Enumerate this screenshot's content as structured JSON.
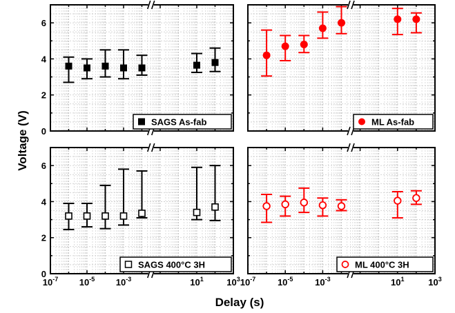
{
  "chart_data": {
    "type": "scatter",
    "xlabel": "Delay (s)",
    "ylabel": "Voltage (V)",
    "x_scale": "log",
    "xlim": [
      1e-07,
      1000
    ],
    "ylim": [
      0,
      7
    ],
    "x_tick_exponents": [
      "-7",
      "-5",
      "-3",
      "1",
      "3"
    ],
    "x_tick_base": "10",
    "y_ticks": [
      "0",
      "2",
      "4",
      "6"
    ],
    "grid": true,
    "axis_break_between": [
      0.01,
      0.1
    ],
    "panels": [
      {
        "position": "top-left",
        "legend": "SAGS As-fab",
        "marker": "filled-square",
        "color": "#000000",
        "points": [
          {
            "x": 1e-06,
            "y": 3.6,
            "low": 2.7,
            "high": 4.1
          },
          {
            "x": 1e-05,
            "y": 3.5,
            "low": 2.9,
            "high": 4.0
          },
          {
            "x": 0.0001,
            "y": 3.6,
            "low": 3.0,
            "high": 4.5
          },
          {
            "x": 0.001,
            "y": 3.5,
            "low": 2.9,
            "high": 4.5
          },
          {
            "x": 0.01,
            "y": 3.5,
            "low": 3.1,
            "high": 4.2
          },
          {
            "x": 10,
            "y": 3.65,
            "low": 3.25,
            "high": 4.3
          },
          {
            "x": 100,
            "y": 3.8,
            "low": 3.3,
            "high": 4.6
          }
        ]
      },
      {
        "position": "top-right",
        "legend": "ML As-fab",
        "marker": "filled-circle",
        "color": "#ff0000",
        "points": [
          {
            "x": 1e-06,
            "y": 4.2,
            "low": 3.05,
            "high": 5.6
          },
          {
            "x": 1e-05,
            "y": 4.7,
            "low": 3.9,
            "high": 5.3
          },
          {
            "x": 0.0001,
            "y": 4.8,
            "low": 4.35,
            "high": 5.3
          },
          {
            "x": 0.001,
            "y": 5.7,
            "low": 5.15,
            "high": 6.6
          },
          {
            "x": 0.01,
            "y": 6.0,
            "low": 5.4,
            "high": 6.9
          },
          {
            "x": 10,
            "y": 6.2,
            "low": 5.35,
            "high": 6.8
          },
          {
            "x": 100,
            "y": 6.2,
            "low": 5.45,
            "high": 6.55
          }
        ]
      },
      {
        "position": "bottom-left",
        "legend": "SAGS 400°C 3H",
        "marker": "open-square",
        "color": "#000000",
        "points": [
          {
            "x": 1e-06,
            "y": 3.2,
            "low": 2.45,
            "high": 3.9
          },
          {
            "x": 1e-05,
            "y": 3.2,
            "low": 2.6,
            "high": 3.9
          },
          {
            "x": 0.0001,
            "y": 3.2,
            "low": 2.5,
            "high": 4.9
          },
          {
            "x": 0.001,
            "y": 3.2,
            "low": 2.7,
            "high": 5.8
          },
          {
            "x": 0.01,
            "y": 3.35,
            "low": 3.1,
            "high": 5.7
          },
          {
            "x": 10,
            "y": 3.4,
            "low": 3.0,
            "high": 5.9
          },
          {
            "x": 100,
            "y": 3.7,
            "low": 2.95,
            "high": 6.0
          }
        ]
      },
      {
        "position": "bottom-right",
        "legend": "ML 400°C 3H",
        "marker": "open-circle",
        "color": "#ff0000",
        "points": [
          {
            "x": 1e-06,
            "y": 3.75,
            "low": 2.85,
            "high": 4.4
          },
          {
            "x": 1e-05,
            "y": 3.85,
            "low": 3.2,
            "high": 4.3
          },
          {
            "x": 0.0001,
            "y": 3.95,
            "low": 3.4,
            "high": 4.75
          },
          {
            "x": 0.001,
            "y": 3.8,
            "low": 3.2,
            "high": 4.2
          },
          {
            "x": 0.01,
            "y": 3.75,
            "low": 3.5,
            "high": 4.1
          },
          {
            "x": 10,
            "y": 4.05,
            "low": 3.1,
            "high": 4.55
          },
          {
            "x": 100,
            "y": 4.2,
            "low": 3.85,
            "high": 4.6
          }
        ]
      }
    ]
  }
}
